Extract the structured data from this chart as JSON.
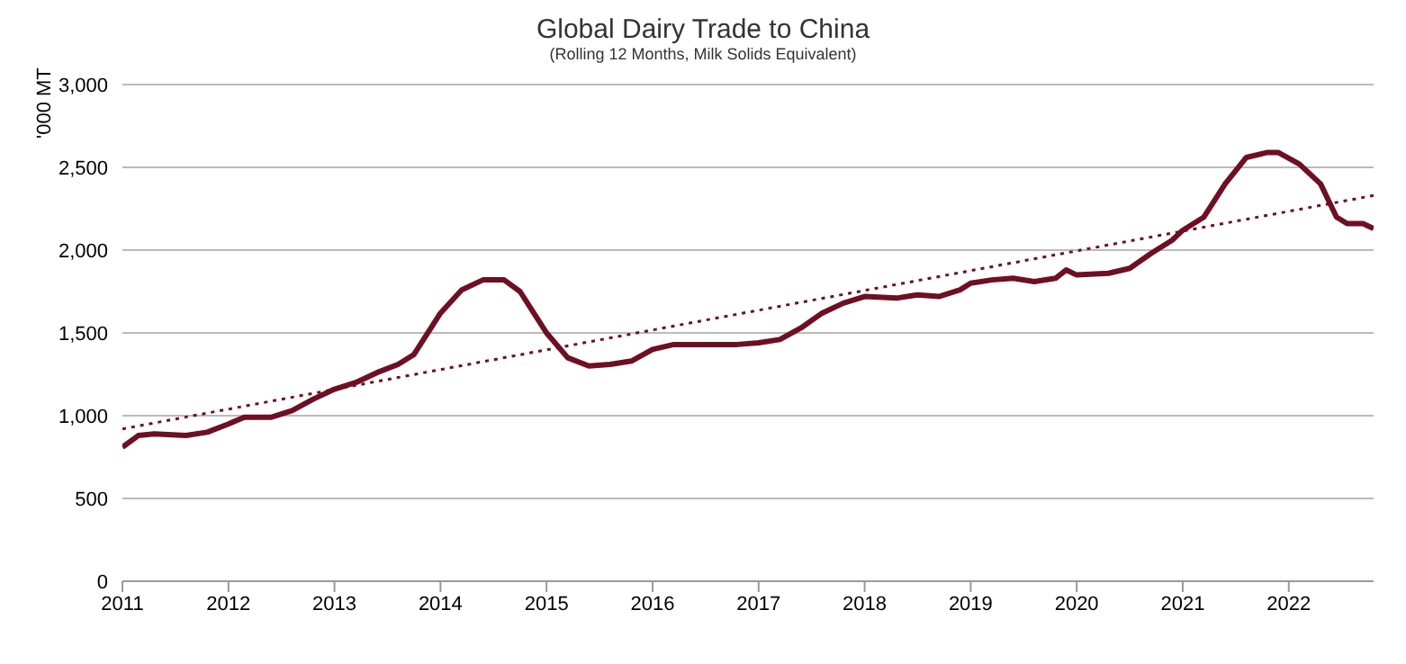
{
  "chart_data": {
    "type": "line",
    "title": "Global Dairy Trade to China",
    "subtitle": "(Rolling 12 Months, Milk Solids Equivalent)",
    "ylabel": "'000 MT",
    "xlim": [
      2011,
      2022.8
    ],
    "xticks": [
      2011,
      2012,
      2013,
      2014,
      2015,
      2016,
      2017,
      2018,
      2019,
      2020,
      2021,
      2022
    ],
    "ylim": [
      0,
      3000
    ],
    "yticks": [
      {
        "value": 0,
        "label": "0"
      },
      {
        "value": 500,
        "label": "500"
      },
      {
        "value": 1000,
        "label": "1,000"
      },
      {
        "value": 1500,
        "label": "1,500"
      },
      {
        "value": 2000,
        "label": "2,000"
      },
      {
        "value": 2500,
        "label": "2,500"
      },
      {
        "value": 3000,
        "label": "3,000"
      }
    ],
    "grid": "y",
    "marker": "none",
    "series": [
      {
        "color": "#6e0f24",
        "line_style": "solid",
        "x": [
          2011.0,
          2011.15,
          2011.3,
          2011.6,
          2011.8,
          2012.0,
          2012.15,
          2012.4,
          2012.6,
          2012.8,
          2013.0,
          2013.2,
          2013.4,
          2013.6,
          2013.75,
          2014.0,
          2014.2,
          2014.4,
          2014.6,
          2014.75,
          2014.9,
          2015.0,
          2015.2,
          2015.4,
          2015.6,
          2015.8,
          2016.0,
          2016.2,
          2016.5,
          2016.8,
          2017.0,
          2017.2,
          2017.4,
          2017.6,
          2017.8,
          2018.0,
          2018.3,
          2018.5,
          2018.7,
          2018.9,
          2019.0,
          2019.2,
          2019.4,
          2019.6,
          2019.8,
          2019.9,
          2020.0,
          2020.3,
          2020.5,
          2020.7,
          2020.9,
          2021.0,
          2021.2,
          2021.4,
          2021.6,
          2021.8,
          2021.9,
          2022.1,
          2022.3,
          2022.45,
          2022.55,
          2022.7,
          2022.8
        ],
        "values": [
          810,
          880,
          890,
          880,
          900,
          950,
          990,
          990,
          1030,
          1100,
          1160,
          1200,
          1260,
          1310,
          1370,
          1620,
          1760,
          1820,
          1820,
          1750,
          1600,
          1500,
          1350,
          1300,
          1310,
          1330,
          1400,
          1430,
          1430,
          1430,
          1440,
          1460,
          1530,
          1620,
          1680,
          1720,
          1710,
          1730,
          1720,
          1760,
          1800,
          1820,
          1830,
          1810,
          1830,
          1880,
          1850,
          1860,
          1890,
          1980,
          2060,
          2120,
          2200,
          2400,
          2560,
          2590,
          2590,
          2520,
          2400,
          2200,
          2160,
          2160,
          2130
        ]
      },
      {
        "type": "line",
        "color": "#6e0f24",
        "line_style": "dotted",
        "x": [
          2011,
          2022.8
        ],
        "values": [
          920,
          2330
        ]
      }
    ]
  }
}
